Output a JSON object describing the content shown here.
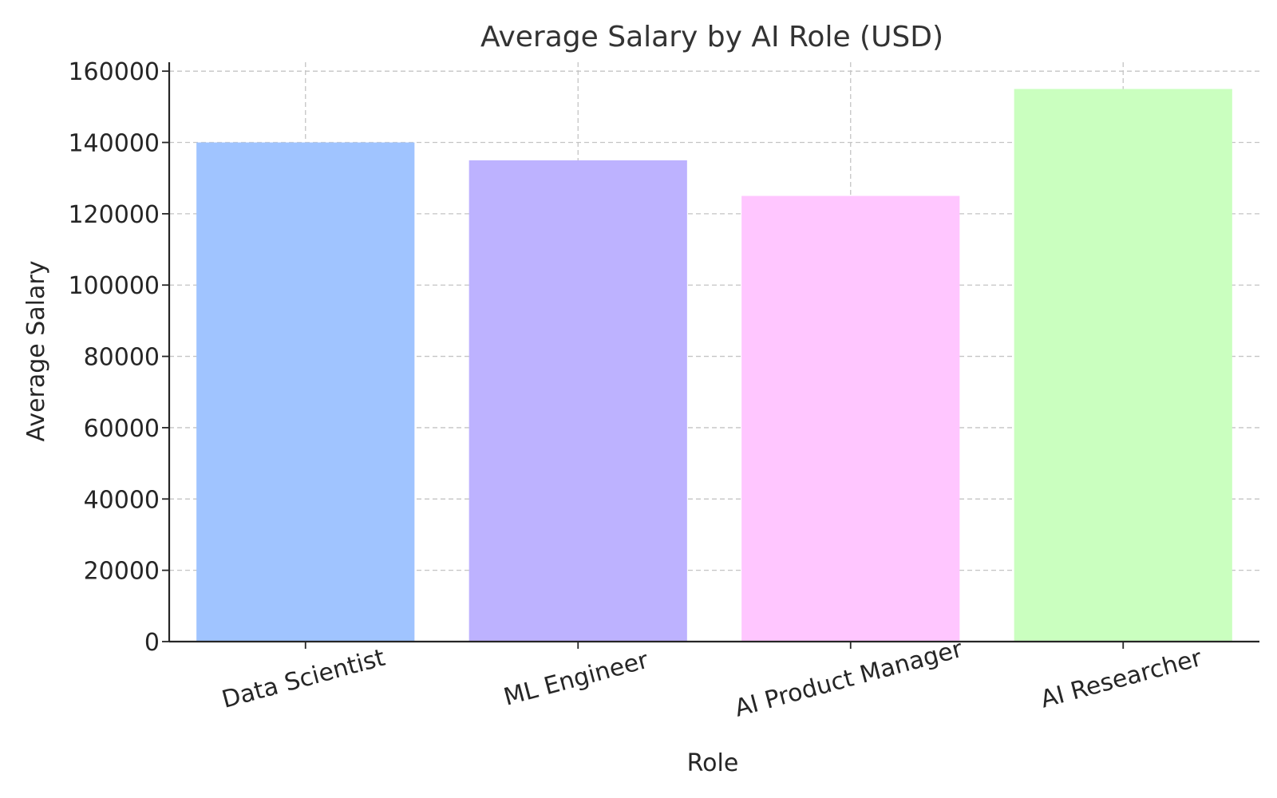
{
  "chart_data": {
    "type": "bar",
    "title": "Average Salary by AI Role (USD)",
    "xlabel": "Role",
    "ylabel": "Average Salary",
    "categories": [
      "Data Scientist",
      "ML Engineer",
      "AI Product Manager",
      "AI Researcher"
    ],
    "values": [
      140000,
      135000,
      125000,
      155000
    ],
    "colors": [
      "#a0c4ff",
      "#bdb2ff",
      "#ffc6ff",
      "#caffbf"
    ],
    "ylim": [
      0,
      162500
    ],
    "yticks": [
      0,
      20000,
      40000,
      60000,
      80000,
      100000,
      120000,
      140000,
      160000
    ],
    "ytick_labels": [
      "0",
      "20000",
      "40000",
      "60000",
      "80000",
      "100000",
      "120000",
      "140000",
      "160000"
    ],
    "grid": true,
    "legend": "none"
  }
}
